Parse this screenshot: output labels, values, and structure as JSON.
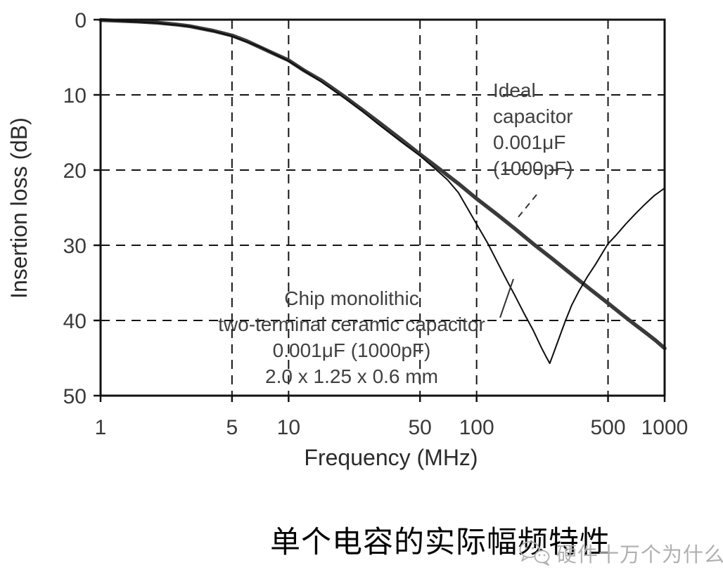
{
  "chart_data": {
    "type": "line",
    "title": "",
    "xlabel": "Frequency (MHz)",
    "ylabel": "Insertion loss (dB)",
    "x_scale": "log",
    "xlim": [
      1,
      1000
    ],
    "ylim": [
      0,
      50
    ],
    "y_inverted": true,
    "grid": "dashed",
    "legend_position": "none",
    "x_ticks": [
      "1",
      "5",
      "10",
      "50",
      "100",
      "500",
      "1000"
    ],
    "x_tick_values": [
      1,
      5,
      10,
      50,
      100,
      500,
      1000
    ],
    "y_ticks": [
      "0",
      "10",
      "20",
      "30",
      "40",
      "50"
    ],
    "y_tick_values": [
      0,
      10,
      20,
      30,
      40,
      50
    ],
    "x_grid": [
      5,
      10,
      50,
      100,
      500
    ],
    "y_grid": [
      10,
      20,
      30,
      40
    ],
    "series": [
      {
        "id": "ideal",
        "name": "Ideal capacitor 0.001μF (1000pF)",
        "color": "#3a3a3a",
        "width": 5.5,
        "points": [
          [
            1,
            0.05
          ],
          [
            1.3,
            0.17
          ],
          [
            1.6,
            0.25
          ],
          [
            2,
            0.4
          ],
          [
            2.5,
            0.63
          ],
          [
            3,
            0.88
          ],
          [
            4,
            1.5
          ],
          [
            5,
            2.1
          ],
          [
            6,
            2.85
          ],
          [
            8,
            4.3
          ],
          [
            10,
            5.4
          ],
          [
            12,
            6.7
          ],
          [
            15,
            8.1
          ],
          [
            20,
            10.3
          ],
          [
            25,
            12.1
          ],
          [
            30,
            13.6
          ],
          [
            40,
            16.0
          ],
          [
            50,
            17.9
          ],
          [
            60,
            19.4
          ],
          [
            80,
            21.8
          ],
          [
            100,
            23.8
          ],
          [
            130,
            26.0
          ],
          [
            160,
            27.8
          ],
          [
            200,
            29.8
          ],
          [
            250,
            31.7
          ],
          [
            300,
            33.3
          ],
          [
            400,
            35.8
          ],
          [
            500,
            37.7
          ],
          [
            600,
            39.3
          ],
          [
            700,
            40.6
          ],
          [
            800,
            41.7
          ],
          [
            900,
            42.7
          ],
          [
            1000,
            43.7
          ]
        ]
      },
      {
        "id": "chip",
        "name": "Chip monolithic two-terminal ceramic capacitor 0.001μF (1000pF) 2.0 x 1.25 x 0.6 mm",
        "color": "#0d0d0d",
        "width": 2,
        "points": [
          [
            1,
            0.05
          ],
          [
            1.5,
            0.25
          ],
          [
            2,
            0.45
          ],
          [
            3,
            0.9
          ],
          [
            4,
            1.55
          ],
          [
            5,
            2.2
          ],
          [
            7,
            3.6
          ],
          [
            10,
            5.5
          ],
          [
            15,
            8.3
          ],
          [
            20,
            10.5
          ],
          [
            25,
            12.3
          ],
          [
            30,
            13.9
          ],
          [
            40,
            16.3
          ],
          [
            50,
            18.1
          ],
          [
            60,
            19.8
          ],
          [
            70,
            21.3
          ],
          [
            80,
            23.0
          ],
          [
            90,
            25.2
          ],
          [
            100,
            27.2
          ],
          [
            115,
            29.8
          ],
          [
            130,
            32.4
          ],
          [
            145,
            34.7
          ],
          [
            160,
            36.7
          ],
          [
            180,
            39.2
          ],
          [
            200,
            41.3
          ],
          [
            220,
            43.5
          ],
          [
            235,
            44.9
          ],
          [
            245,
            45.7
          ],
          [
            258,
            44.2
          ],
          [
            275,
            42.3
          ],
          [
            295,
            40.2
          ],
          [
            320,
            38.0
          ],
          [
            350,
            36.1
          ],
          [
            390,
            34.1
          ],
          [
            430,
            32.5
          ],
          [
            470,
            30.9
          ],
          [
            500,
            29.8
          ],
          [
            550,
            28.7
          ],
          [
            620,
            27.2
          ],
          [
            700,
            25.8
          ],
          [
            790,
            24.5
          ],
          [
            880,
            23.4
          ],
          [
            950,
            22.8
          ],
          [
            1000,
            22.4
          ]
        ]
      }
    ],
    "annotations": {
      "ideal": {
        "lines": [
          "Ideal",
          "capacitor",
          "0.001μF",
          "(1000pF)"
        ]
      },
      "chip": {
        "lines": [
          "Chip monolithic",
          "two-terminal ceramic capacitor",
          "0.001μF (1000pF)",
          "2.0 x 1.25 x 0.6 mm"
        ]
      }
    }
  },
  "caption": "单个电容的实际幅频特性",
  "watermark": {
    "text": "硬件十万个为什么",
    "icon": "wechat-icon",
    "color": "#b0b0b0"
  },
  "colors": {
    "background": "#ffffff",
    "axis": "#121212",
    "ideal_curve": "#3a3a3a",
    "chip_curve": "#0d0d0d"
  }
}
